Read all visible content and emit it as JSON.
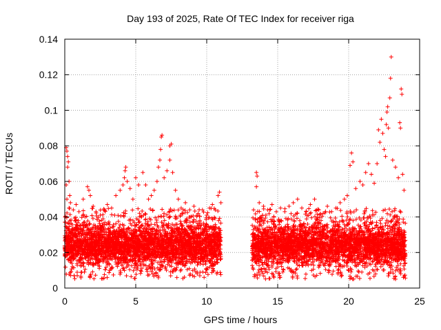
{
  "chart_data": {
    "type": "scatter",
    "title": "Day 193 of 2025, Rate Of TEC Index for receiver riga",
    "xlabel": "GPS time / hours",
    "ylabel": "ROTI / TECUs",
    "xlim": [
      0,
      25
    ],
    "ylim": [
      0,
      0.14
    ],
    "xticks": [
      0,
      5,
      10,
      15,
      20,
      25
    ],
    "xtick_labels": [
      "0",
      "5",
      "10",
      "15",
      "20",
      "25"
    ],
    "yticks": [
      0,
      0.02,
      0.04,
      0.06,
      0.08,
      0.1,
      0.12,
      0.14
    ],
    "ytick_labels": [
      "0",
      "0.02",
      "0.04",
      "0.06",
      "0.08",
      "0.1",
      "0.12",
      "0.14"
    ],
    "grid": true,
    "marker": "+",
    "series_color": "#ff0000",
    "series": [
      {
        "name": "ROTI",
        "segments": [
          {
            "x_start": 0.0,
            "x_end": 11.0
          },
          {
            "x_start": 13.2,
            "x_end": 24.0
          }
        ],
        "typical_range": [
          0.01,
          0.035
        ],
        "points": [
          [
            0.1,
            0.079
          ],
          [
            0.15,
            0.077
          ],
          [
            0.2,
            0.074
          ],
          [
            0.25,
            0.071
          ],
          [
            0.2,
            0.068
          ],
          [
            0.3,
            0.06
          ],
          [
            0.1,
            0.058
          ],
          [
            0.35,
            0.052
          ],
          [
            0.15,
            0.05
          ],
          [
            0.4,
            0.048
          ],
          [
            0.3,
            0.045
          ],
          [
            0.6,
            0.044
          ],
          [
            0.8,
            0.047
          ],
          [
            1.0,
            0.043
          ],
          [
            1.3,
            0.05
          ],
          [
            1.6,
            0.057
          ],
          [
            1.7,
            0.055
          ],
          [
            1.8,
            0.052
          ],
          [
            2.0,
            0.046
          ],
          [
            2.2,
            0.043
          ],
          [
            2.5,
            0.041
          ],
          [
            2.8,
            0.044
          ],
          [
            3.0,
            0.047
          ],
          [
            3.3,
            0.045
          ],
          [
            3.6,
            0.052
          ],
          [
            3.9,
            0.055
          ],
          [
            4.1,
            0.058
          ],
          [
            4.2,
            0.062
          ],
          [
            4.25,
            0.066
          ],
          [
            4.3,
            0.068
          ],
          [
            4.4,
            0.06
          ],
          [
            4.6,
            0.056
          ],
          [
            4.8,
            0.05
          ],
          [
            5.0,
            0.062
          ],
          [
            5.2,
            0.058
          ],
          [
            5.5,
            0.065
          ],
          [
            5.7,
            0.058
          ],
          [
            5.9,
            0.05
          ],
          [
            6.1,
            0.052
          ],
          [
            6.3,
            0.055
          ],
          [
            6.5,
            0.06
          ],
          [
            6.6,
            0.068
          ],
          [
            6.7,
            0.072
          ],
          [
            6.75,
            0.078
          ],
          [
            6.8,
            0.085
          ],
          [
            6.85,
            0.086
          ],
          [
            7.0,
            0.062
          ],
          [
            7.2,
            0.066
          ],
          [
            7.4,
            0.08
          ],
          [
            7.5,
            0.081
          ],
          [
            7.4,
            0.072
          ],
          [
            7.6,
            0.065
          ],
          [
            7.8,
            0.055
          ],
          [
            8.0,
            0.05
          ],
          [
            8.2,
            0.045
          ],
          [
            8.5,
            0.048
          ],
          [
            8.8,
            0.044
          ],
          [
            9.1,
            0.046
          ],
          [
            9.4,
            0.042
          ],
          [
            9.7,
            0.044
          ],
          [
            10.0,
            0.041
          ],
          [
            10.2,
            0.045
          ],
          [
            10.4,
            0.047
          ],
          [
            10.6,
            0.044
          ],
          [
            10.8,
            0.052
          ],
          [
            10.9,
            0.054
          ],
          [
            11.0,
            0.048
          ],
          [
            13.3,
            0.044
          ],
          [
            13.5,
            0.065
          ],
          [
            13.55,
            0.063
          ],
          [
            13.5,
            0.057
          ],
          [
            13.7,
            0.048
          ],
          [
            14.0,
            0.046
          ],
          [
            14.3,
            0.044
          ],
          [
            14.6,
            0.047
          ],
          [
            14.9,
            0.043
          ],
          [
            15.2,
            0.045
          ],
          [
            15.5,
            0.043
          ],
          [
            15.8,
            0.046
          ],
          [
            16.1,
            0.048
          ],
          [
            16.4,
            0.05
          ],
          [
            16.7,
            0.045
          ],
          [
            17.0,
            0.043
          ],
          [
            17.3,
            0.047
          ],
          [
            17.6,
            0.05
          ],
          [
            17.9,
            0.044
          ],
          [
            18.2,
            0.042
          ],
          [
            18.5,
            0.046
          ],
          [
            18.8,
            0.043
          ],
          [
            19.1,
            0.045
          ],
          [
            19.4,
            0.048
          ],
          [
            19.7,
            0.05
          ],
          [
            19.9,
            0.052
          ],
          [
            20.1,
            0.069
          ],
          [
            20.2,
            0.076
          ],
          [
            20.3,
            0.071
          ],
          [
            20.5,
            0.056
          ],
          [
            20.8,
            0.06
          ],
          [
            21.0,
            0.058
          ],
          [
            21.2,
            0.065
          ],
          [
            21.4,
            0.07
          ],
          [
            21.6,
            0.064
          ],
          [
            21.8,
            0.059
          ],
          [
            22.0,
            0.07
          ],
          [
            22.1,
            0.089
          ],
          [
            22.2,
            0.082
          ],
          [
            22.3,
            0.095
          ],
          [
            22.4,
            0.087
          ],
          [
            22.5,
            0.078
          ],
          [
            22.6,
            0.074
          ],
          [
            22.65,
            0.092
          ],
          [
            22.7,
            0.099
          ],
          [
            22.75,
            0.102
          ],
          [
            22.8,
            0.09
          ],
          [
            22.9,
            0.107
          ],
          [
            22.95,
            0.118
          ],
          [
            23.0,
            0.13
          ],
          [
            23.1,
            0.072
          ],
          [
            23.3,
            0.068
          ],
          [
            23.5,
            0.062
          ],
          [
            23.6,
            0.093
          ],
          [
            23.65,
            0.09
          ],
          [
            23.7,
            0.112
          ],
          [
            23.75,
            0.109
          ],
          [
            23.8,
            0.064
          ],
          [
            23.9,
            0.055
          ]
        ]
      }
    ]
  }
}
